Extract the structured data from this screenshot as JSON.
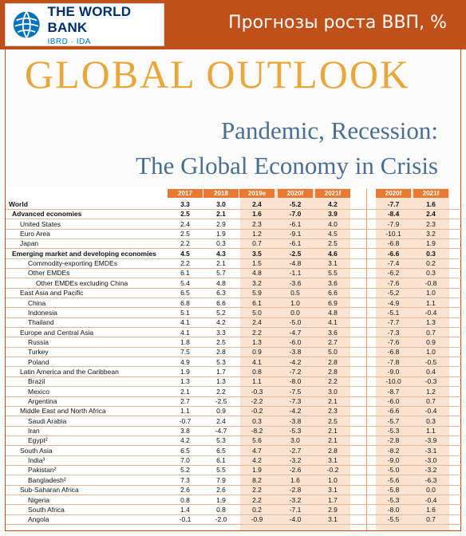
{
  "header": {
    "logo_name": "THE WORLD BANK",
    "logo_sub": "IBRD · IDA",
    "title": "Прогнозы роста ВВП, %"
  },
  "cover": {
    "title": "GLOBAL OUTLOOK",
    "subtitle_line1": "Pandemic, Recession:",
    "subtitle_line2": "The Global Economy in Crisis"
  },
  "colors": {
    "bar": "#c0501a",
    "header_cell": "#e87933",
    "band": "#fbe3d2",
    "gold": "#e9a63a",
    "blue": "#4a6d92"
  },
  "table": {
    "columns": [
      "2017",
      "2018",
      "2019e",
      "2020f",
      "2021f",
      "2020f",
      "2021f"
    ],
    "rows": [
      {
        "label": "World",
        "level": 0,
        "bold": true,
        "values": [
          "3.3",
          "3.0",
          "2.4",
          "-5.2",
          "4.2",
          "-7.7",
          "1.6"
        ]
      },
      {
        "label": "Advanced economies",
        "level": 1,
        "bold": true,
        "values": [
          "2.5",
          "2.1",
          "1.6",
          "-7.0",
          "3.9",
          "-8.4",
          "2.4"
        ]
      },
      {
        "label": "United States",
        "level": 2,
        "bold": false,
        "values": [
          "2.4",
          "2.9",
          "2.3",
          "-6.1",
          "4.0",
          "-7.9",
          "2.3"
        ]
      },
      {
        "label": "Euro Area",
        "level": 2,
        "bold": false,
        "values": [
          "2.5",
          "1.9",
          "1.2",
          "-9.1",
          "4.5",
          "-10.1",
          "3.2"
        ]
      },
      {
        "label": "Japan",
        "level": 2,
        "bold": false,
        "values": [
          "2.2",
          "0.3",
          "0.7",
          "-6.1",
          "2.5",
          "-6.8",
          "1.9"
        ]
      },
      {
        "label": "Emerging market and developing economies",
        "level": 1,
        "bold": true,
        "values": [
          "4.5",
          "4.3",
          "3.5",
          "-2.5",
          "4.6",
          "-6.6",
          "0.3"
        ]
      },
      {
        "label": "Commodity-exporting EMDEs",
        "level": 3,
        "bold": false,
        "values": [
          "2.2",
          "2.1",
          "1.5",
          "-4.8",
          "3.1",
          "-7.4",
          "0.2"
        ]
      },
      {
        "label": "Other EMDEs",
        "level": 3,
        "bold": false,
        "values": [
          "6.1",
          "5.7",
          "4.8",
          "-1.1",
          "5.5",
          "-6.2",
          "0.3"
        ]
      },
      {
        "label": "Other EMDEs excluding China",
        "level": 4,
        "bold": false,
        "values": [
          "5.4",
          "4.8",
          "3.2",
          "-3.6",
          "3.6",
          "-7.6",
          "-0.8"
        ]
      },
      {
        "label": "East Asia and Pacific",
        "level": 2,
        "bold": false,
        "values": [
          "6.5",
          "6.3",
          "5.9",
          "0.5",
          "6.6",
          "-5.2",
          "1.0"
        ]
      },
      {
        "label": "China",
        "level": 3,
        "bold": false,
        "values": [
          "6.8",
          "6.6",
          "6.1",
          "1.0",
          "6.9",
          "-4.9",
          "1.1"
        ]
      },
      {
        "label": "Indonesia",
        "level": 3,
        "bold": false,
        "values": [
          "5.1",
          "5.2",
          "5.0",
          "0.0",
          "4.8",
          "-5.1",
          "-0.4"
        ]
      },
      {
        "label": "Thailand",
        "level": 3,
        "bold": false,
        "values": [
          "4.1",
          "4.2",
          "2.4",
          "-5.0",
          "4.1",
          "-7.7",
          "1.3"
        ]
      },
      {
        "label": "Europe and Central Asia",
        "level": 2,
        "bold": false,
        "values": [
          "4.1",
          "3.3",
          "2.2",
          "-4.7",
          "3.6",
          "-7.3",
          "0.7"
        ]
      },
      {
        "label": "Russia",
        "level": 3,
        "bold": false,
        "values": [
          "1.8",
          "2.5",
          "1.3",
          "-6.0",
          "2.7",
          "-7.6",
          "0.9"
        ]
      },
      {
        "label": "Turkey",
        "level": 3,
        "bold": false,
        "values": [
          "7.5",
          "2.8",
          "0.9",
          "-3.8",
          "5.0",
          "-6.8",
          "1.0"
        ]
      },
      {
        "label": "Poland",
        "level": 3,
        "bold": false,
        "values": [
          "4.9",
          "5.3",
          "4.1",
          "-4.2",
          "2.8",
          "-7.8",
          "-0.5"
        ]
      },
      {
        "label": "Latin America and the Caribbean",
        "level": 2,
        "bold": false,
        "values": [
          "1.9",
          "1.7",
          "0.8",
          "-7.2",
          "2.8",
          "-9.0",
          "0.4"
        ]
      },
      {
        "label": "Brazil",
        "level": 3,
        "bold": false,
        "values": [
          "1.3",
          "1.3",
          "1.1",
          "-8.0",
          "2.2",
          "-10.0",
          "-0.3"
        ]
      },
      {
        "label": "Mexico",
        "level": 3,
        "bold": false,
        "values": [
          "2.1",
          "2.2",
          "-0.3",
          "-7.5",
          "3.0",
          "-8.7",
          "1.2"
        ]
      },
      {
        "label": "Argentina",
        "level": 3,
        "bold": false,
        "values": [
          "2.7",
          "-2.5",
          "-2.2",
          "-7.3",
          "2.1",
          "-6.0",
          "0.7"
        ]
      },
      {
        "label": "Middle East and North Africa",
        "level": 2,
        "bold": false,
        "values": [
          "1.1",
          "0.9",
          "-0.2",
          "-4.2",
          "2.3",
          "-6.6",
          "-0.4"
        ]
      },
      {
        "label": "Saudi Arabia",
        "level": 3,
        "bold": false,
        "values": [
          "-0.7",
          "2.4",
          "0.3",
          "-3.8",
          "2.5",
          "-5.7",
          "0.3"
        ]
      },
      {
        "label": "Iran",
        "level": 3,
        "bold": false,
        "values": [
          "3.8",
          "-4.7",
          "-8.2",
          "-5.3",
          "2.1",
          "-5.3",
          "1.1"
        ]
      },
      {
        "label": "Egypt²",
        "level": 3,
        "bold": false,
        "values": [
          "4.2",
          "5.3",
          "5.6",
          "3.0",
          "2.1",
          "-2.8",
          "-3.9"
        ]
      },
      {
        "label": "South Asia",
        "level": 2,
        "bold": false,
        "values": [
          "6.5",
          "6.5",
          "4.7",
          "-2.7",
          "2.8",
          "-8.2",
          "-3.1"
        ]
      },
      {
        "label": "India³",
        "level": 3,
        "bold": false,
        "values": [
          "7.0",
          "6.1",
          "4.2",
          "-3.2",
          "3.1",
          "-9.0",
          "-3.0"
        ]
      },
      {
        "label": "Pakistan²",
        "level": 3,
        "bold": false,
        "values": [
          "5.2",
          "5.5",
          "1.9",
          "-2.6",
          "-0.2",
          "-5.0",
          "-3.2"
        ]
      },
      {
        "label": "Bangladesh²",
        "level": 3,
        "bold": false,
        "values": [
          "7.3",
          "7.9",
          "8.2",
          "1.6",
          "1.0",
          "-5.6",
          "-6.3"
        ]
      },
      {
        "label": "Sub-Saharan Africa",
        "level": 2,
        "bold": false,
        "values": [
          "2.6",
          "2.6",
          "2.2",
          "-2.8",
          "3.1",
          "-5.8",
          "0.0"
        ]
      },
      {
        "label": "Nigeria",
        "level": 3,
        "bold": false,
        "values": [
          "0.8",
          "1.9",
          "2.2",
          "-3.2",
          "1.7",
          "-5.3",
          "-0.4"
        ]
      },
      {
        "label": "South Africa",
        "level": 3,
        "bold": false,
        "values": [
          "1.4",
          "0.8",
          "0.2",
          "-7.1",
          "2.9",
          "-8.0",
          "1.6"
        ]
      },
      {
        "label": "Angola",
        "level": 3,
        "bold": false,
        "values": [
          "-0.1",
          "-2.0",
          "-0.9",
          "-4.0",
          "3.1",
          "-5.5",
          "0.7"
        ]
      }
    ]
  }
}
